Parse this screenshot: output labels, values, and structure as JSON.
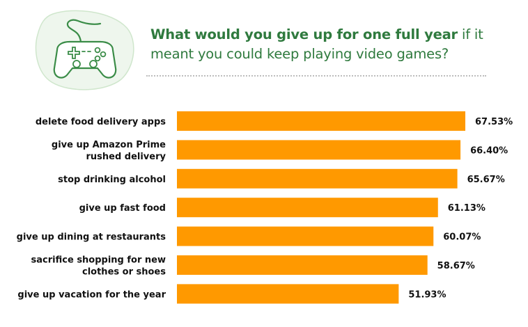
{
  "header": {
    "title_bold": "What would you give up for one full year",
    "title_rest": " if it meant you could keep playing video games?",
    "icon": "gamepad-icon"
  },
  "colors": {
    "bar": "#FF9900",
    "accent_green": "#2f7a3e",
    "icon_bg": "#e9f4e8"
  },
  "chart_data": {
    "type": "bar",
    "orientation": "horizontal",
    "title": "What would you give up for one full year if it meant you could keep playing video games?",
    "categories": [
      [
        "delete food delivery apps"
      ],
      [
        "give up Amazon Prime",
        "rushed delivery"
      ],
      [
        "stop drinking alcohol"
      ],
      [
        "give up fast food"
      ],
      [
        "give up dining at restaurants"
      ],
      [
        "sacrifice shopping for new",
        "clothes or shoes"
      ],
      [
        "give up vacation for the year"
      ]
    ],
    "values": [
      67.53,
      66.4,
      65.67,
      61.13,
      60.07,
      58.67,
      51.93
    ],
    "value_labels": [
      "67.53%",
      "66.40%",
      "65.67%",
      "61.13%",
      "60.07%",
      "58.67%",
      "51.93%"
    ],
    "xlabel": "",
    "ylabel": "",
    "grid": false,
    "legend": "none"
  }
}
